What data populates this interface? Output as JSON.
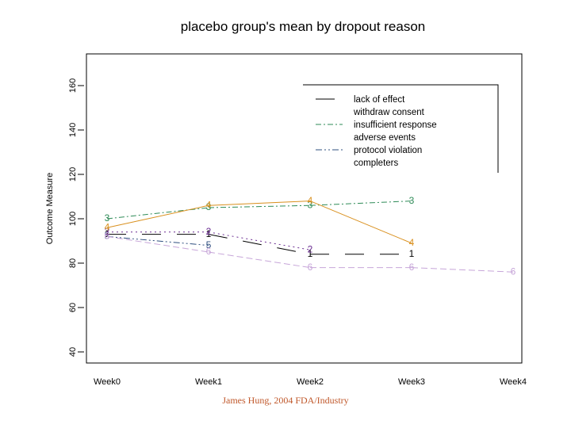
{
  "chart_data": {
    "type": "line",
    "title": "placebo group's mean by dropout reason",
    "xlabel": "",
    "ylabel": "Outcome Measure",
    "categories": [
      "Week0",
      "Week1",
      "Week2",
      "Week3",
      "Week4"
    ],
    "yticks": [
      40,
      60,
      80,
      100,
      120,
      140,
      160
    ],
    "ylim": [
      35,
      175
    ],
    "legend_position": "top-right",
    "series": [
      {
        "name": "lack of effect",
        "marker": "1",
        "color": "#000000",
        "dash": "24,20",
        "values": [
          93,
          93,
          84,
          84,
          null
        ]
      },
      {
        "name": "withdraw consent",
        "marker": "2",
        "color": "#6a2c91",
        "dash": "2,4",
        "values": [
          94,
          94,
          86,
          null,
          null
        ]
      },
      {
        "name": "insufficient response",
        "marker": "3",
        "color": "#2e8b57",
        "dash": "7,3,2,3",
        "values": [
          100,
          105,
          106,
          108,
          null
        ]
      },
      {
        "name": "adverse events",
        "marker": "4",
        "color": "#d9901e",
        "dash": "none",
        "values": [
          96,
          106,
          108,
          89,
          null
        ]
      },
      {
        "name": "protocol violation",
        "marker": "5",
        "color": "#2f4f7f",
        "dash": "8,3,2,3,2,3",
        "values": [
          92,
          88,
          null,
          null,
          null
        ]
      },
      {
        "name": "completers",
        "marker": "6",
        "color": "#c7a6d9",
        "dash": "8,4",
        "values": [
          92,
          85,
          78,
          78,
          76
        ]
      }
    ]
  },
  "credit": "James Hung, 2004 FDA/Industry"
}
